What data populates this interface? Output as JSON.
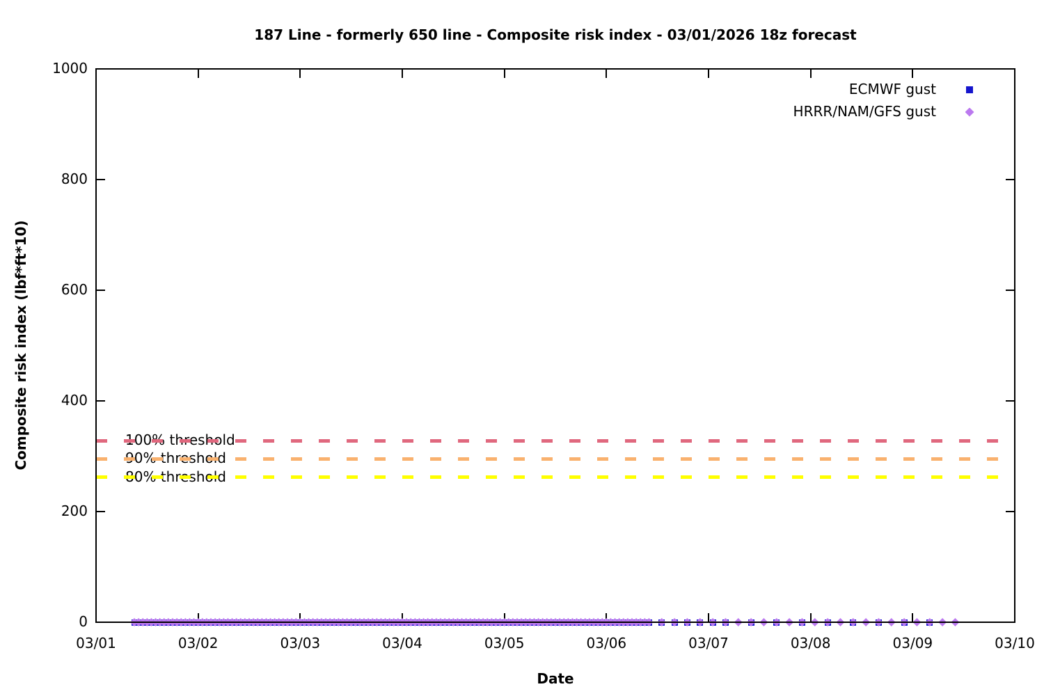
{
  "chart_data": {
    "type": "scatter",
    "title": "187 Line - formerly 650 line - Composite risk index - 03/01/2026 18z forecast",
    "xlabel": "Date",
    "ylabel": "Composite risk index (lbf*ft*10)",
    "x_tick_labels": [
      "03/01",
      "03/02",
      "03/03",
      "03/04",
      "03/05",
      "03/06",
      "03/07",
      "03/08",
      "03/09",
      "03/10"
    ],
    "x_range_days": [
      0,
      9
    ],
    "ylim": [
      0,
      1000
    ],
    "y_ticks": [
      0,
      200,
      400,
      600,
      800,
      1000
    ],
    "grid": false,
    "legend_position": "top-right-inside",
    "series": [
      {
        "name": "ECMWF gust",
        "marker": "square",
        "color": "#1515cd",
        "value_constant": 0,
        "time_segments_hours": [
          {
            "start": 9,
            "end": 130,
            "step": 1
          },
          {
            "start": 133,
            "end": 148,
            "step": 3
          },
          {
            "start": 154,
            "end": 196,
            "step": 6
          }
        ]
      },
      {
        "name": "HRRR/NAM/GFS gust",
        "marker": "diamond",
        "color": "#bb79ef",
        "value_constant": 0,
        "time_segments_hours": [
          {
            "start": 9,
            "end": 130,
            "step": 1
          },
          {
            "start": 133,
            "end": 202,
            "step": 3
          }
        ]
      }
    ],
    "threshold_lines": [
      {
        "label": "100% threshold",
        "value": 328,
        "color": "#e0687e",
        "style": "dashed"
      },
      {
        "label": "90% threshold",
        "value": 295,
        "color": "#f9b16e",
        "style": "dashed"
      },
      {
        "label": "80% threshold",
        "value": 262,
        "color": "#ffff00",
        "style": "dashed"
      }
    ]
  }
}
